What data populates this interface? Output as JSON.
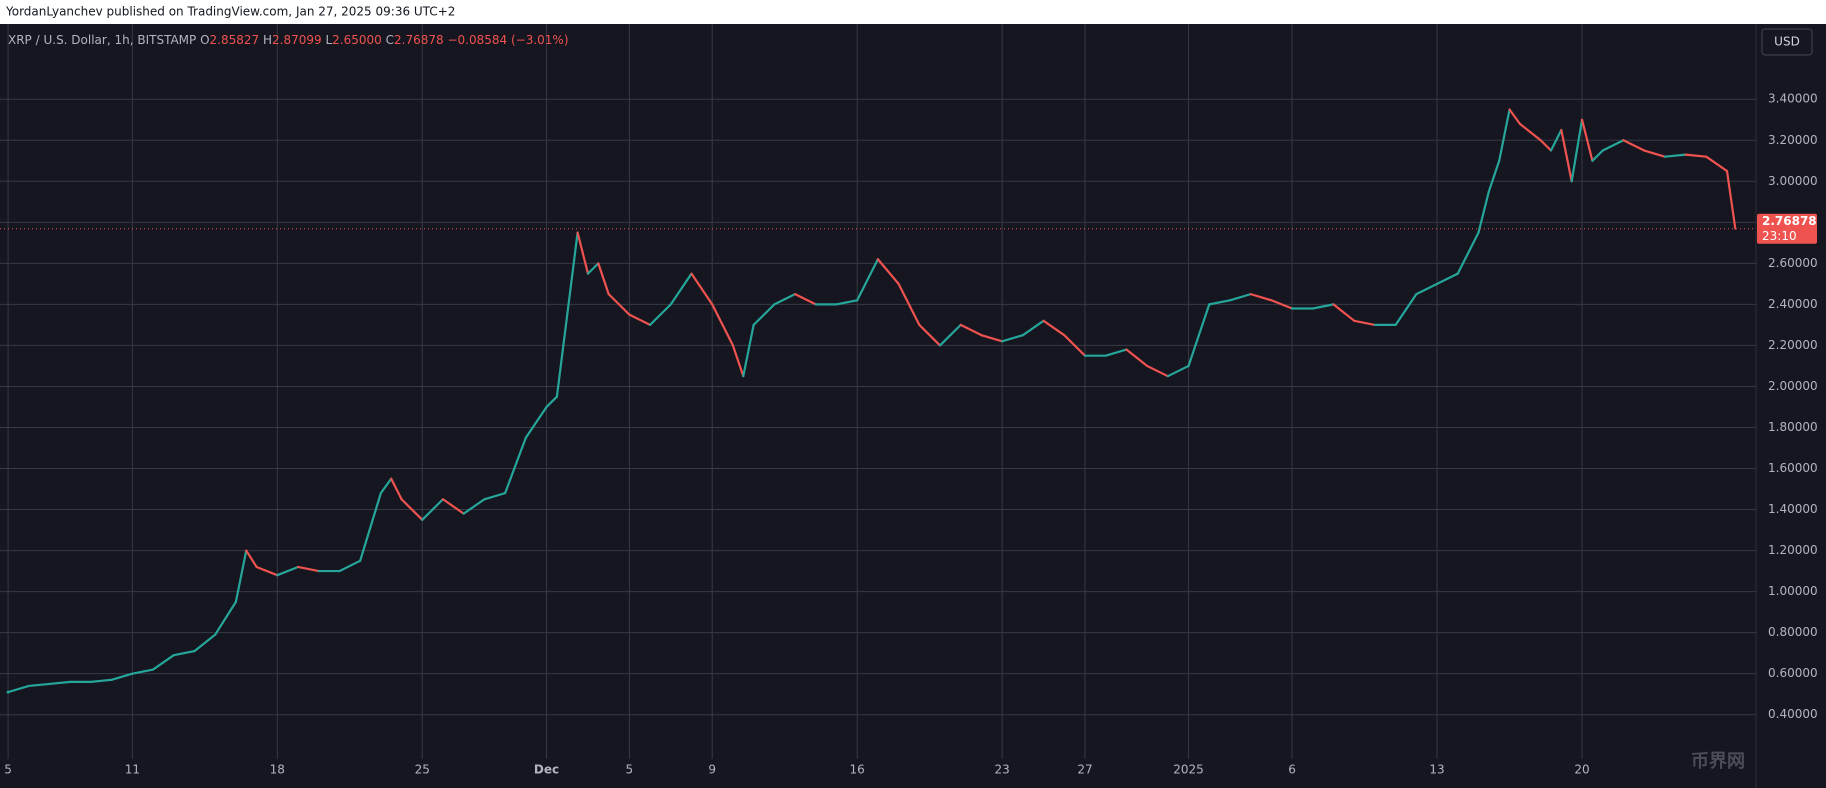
{
  "header": {
    "text": "YordanLyanchev published on TradingView.com, Jan 27, 2025 09:36 UTC+2"
  },
  "chart_data": {
    "type": "line",
    "legend": {
      "symbol": "XRP / U.S. Dollar, 1h, BITSTAMP",
      "o_label": "O",
      "open": "2.85827",
      "h_label": "H",
      "high": "2.87099",
      "l_label": "L",
      "low": "2.65000",
      "c_label": "C",
      "close": "2.76878",
      "change": "−0.08584 (−3.01%)"
    },
    "currency": "USD",
    "x": [
      0,
      1,
      2,
      3,
      4,
      5,
      6,
      7,
      8,
      9,
      10,
      11,
      11.5,
      12,
      13,
      14,
      15,
      16,
      17,
      18,
      18.5,
      19,
      20,
      21,
      22,
      23,
      24,
      25,
      26,
      26.5,
      27,
      27.5,
      28,
      28.5,
      29,
      30,
      31,
      32,
      33,
      34,
      35,
      35.5,
      36,
      37,
      38,
      39,
      40,
      41,
      42,
      43,
      44,
      45,
      46,
      47,
      48,
      49,
      50,
      51,
      52,
      53,
      54,
      55,
      56,
      57,
      58,
      59,
      60,
      61,
      62,
      63,
      64,
      65,
      66,
      67,
      68,
      69,
      70,
      71,
      71.5,
      72,
      72.5,
      73,
      74,
      74.5,
      75,
      75.5,
      76,
      76.5,
      77,
      78,
      79,
      80,
      81,
      82,
      83,
      83.4
    ],
    "values": [
      0.51,
      0.54,
      0.55,
      0.56,
      0.56,
      0.57,
      0.6,
      0.62,
      0.69,
      0.71,
      0.79,
      0.95,
      1.2,
      1.12,
      1.08,
      1.12,
      1.1,
      1.1,
      1.15,
      1.48,
      1.55,
      1.45,
      1.35,
      1.45,
      1.38,
      1.45,
      1.48,
      1.75,
      1.9,
      1.95,
      2.35,
      2.75,
      2.55,
      2.6,
      2.45,
      2.35,
      2.3,
      2.4,
      2.55,
      2.4,
      2.2,
      2.05,
      2.3,
      2.4,
      2.45,
      2.4,
      2.4,
      2.42,
      2.62,
      2.5,
      2.3,
      2.2,
      2.3,
      2.25,
      2.22,
      2.25,
      2.32,
      2.25,
      2.15,
      2.15,
      2.18,
      2.1,
      2.05,
      2.1,
      2.4,
      2.42,
      2.45,
      2.42,
      2.38,
      2.38,
      2.4,
      2.32,
      2.3,
      2.3,
      2.45,
      2.5,
      2.55,
      2.75,
      2.95,
      3.1,
      3.35,
      3.28,
      3.2,
      3.15,
      3.25,
      3.0,
      3.3,
      3.1,
      3.15,
      3.2,
      3.15,
      3.12,
      3.13,
      3.12,
      3.05,
      2.77
    ],
    "up_color": "#26a69a",
    "down_color": "#ef5350",
    "last_price": 2.76878,
    "countdown": "23:10",
    "xlim": [
      -0.39,
      84.4
    ],
    "xticks": [
      {
        "value": 0,
        "label": "5"
      },
      {
        "value": 6,
        "label": "11"
      },
      {
        "value": 13,
        "label": "18"
      },
      {
        "value": 20,
        "label": "25"
      },
      {
        "value": 26,
        "label": "Dec"
      },
      {
        "value": 30,
        "label": "5"
      },
      {
        "value": 34,
        "label": "9"
      },
      {
        "value": 41,
        "label": "16"
      },
      {
        "value": 48,
        "label": "23"
      },
      {
        "value": 52,
        "label": "27"
      },
      {
        "value": 57,
        "label": "2025"
      },
      {
        "value": 62,
        "label": "6"
      },
      {
        "value": 69,
        "label": "13"
      },
      {
        "value": 76,
        "label": "20"
      }
    ],
    "ylim": [
      0.184,
      3.757
    ],
    "yticks": [
      {
        "value": 0.4,
        "label": "0.40000"
      },
      {
        "value": 0.6,
        "label": "0.60000"
      },
      {
        "value": 0.8,
        "label": "0.80000"
      },
      {
        "value": 1.0,
        "label": "1.00000"
      },
      {
        "value": 1.2,
        "label": "1.20000"
      },
      {
        "value": 1.4,
        "label": "1.40000"
      },
      {
        "value": 1.6,
        "label": "1.60000"
      },
      {
        "value": 1.8,
        "label": "1.80000"
      },
      {
        "value": 2.0,
        "label": "2.00000"
      },
      {
        "value": 2.2,
        "label": "2.20000"
      },
      {
        "value": 2.4,
        "label": "2.40000"
      },
      {
        "value": 2.6,
        "label": "2.60000"
      },
      {
        "value": 2.8,
        "label": "2.80000"
      },
      {
        "value": 3.0,
        "label": "3.00000"
      },
      {
        "value": 3.2,
        "label": "3.20000"
      },
      {
        "value": 3.4,
        "label": "3.40000"
      }
    ],
    "grid": true,
    "watermark": "币界网"
  }
}
